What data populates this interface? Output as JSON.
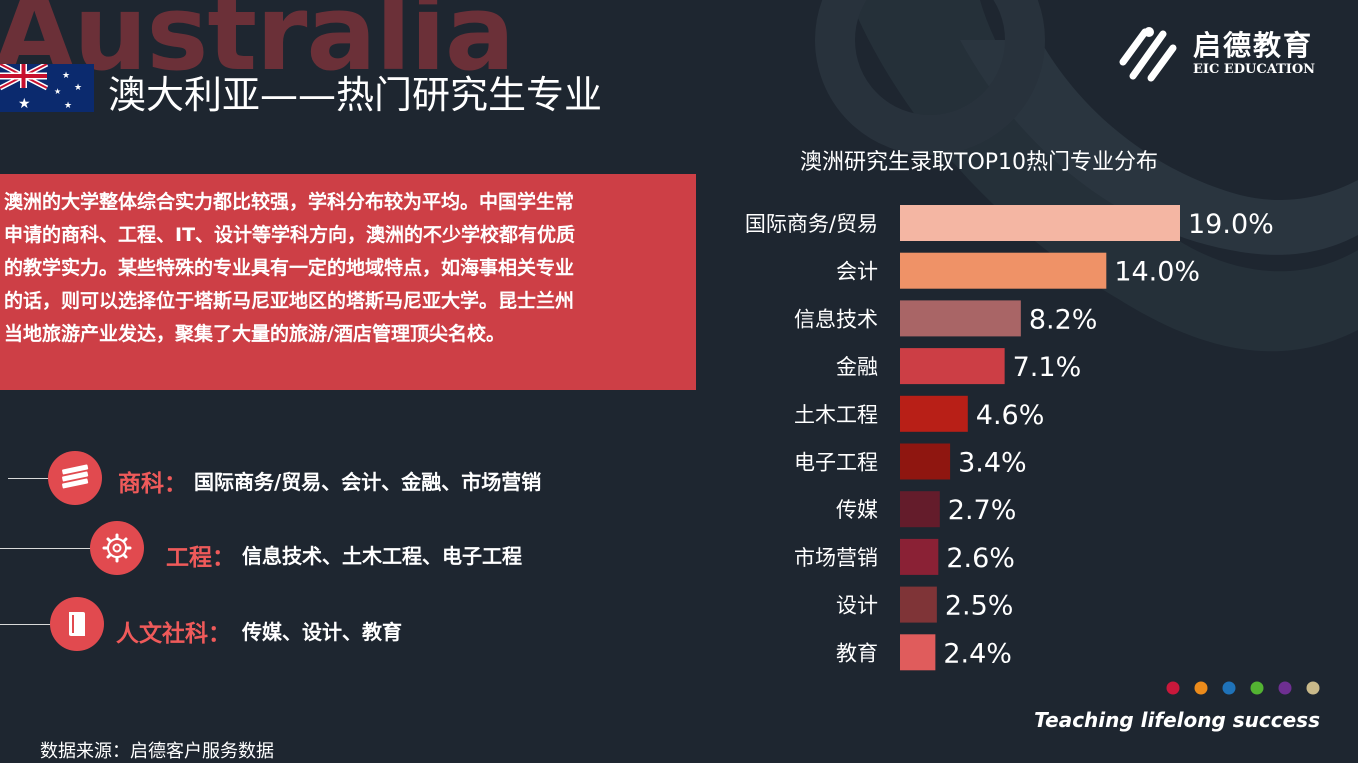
{
  "watermark": "Australia",
  "header": {
    "title": "澳大利亚——热门研究生专业"
  },
  "logo": {
    "cn": "启德教育",
    "en": "EIC EDUCATION"
  },
  "intro": {
    "lines": [
      "澳洲的大学整体综合实力都比较强，学科分布较为平均。中国学生常",
      "申请的商科、工程、IT、设计等学科方向，澳洲的不少学校都有优质",
      "的教学实力。某些特殊的专业具有一定的地域特点，如海事相关专业",
      "的话，则可以选择位于塔斯马尼亚地区的塔斯马尼亚大学。昆士兰州",
      "当地旅游产业发达，聚集了大量的旅游/酒店管理顶尖名校。"
    ]
  },
  "categories": [
    {
      "label": "商科：",
      "items": "国际商务/贸易、会计、金融、市场营销",
      "icon": "money-icon"
    },
    {
      "label": "工程：",
      "items": "信息技术、土木工程、电子工程",
      "icon": "gear-icon"
    },
    {
      "label": "人文社科：",
      "items": "传媒、设计、教育",
      "icon": "book-icon"
    }
  ],
  "chart_data": {
    "type": "bar",
    "orientation": "horizontal",
    "title": "澳洲研究生录取TOP10热门专业分布",
    "categories": [
      "国际商务/贸易",
      "会计",
      "信息技术",
      "金融",
      "土木工程",
      "电子工程",
      "传媒",
      "市场营销",
      "设计",
      "教育"
    ],
    "values": [
      19.0,
      14.0,
      8.2,
      7.1,
      4.6,
      3.4,
      2.7,
      2.6,
      2.5,
      2.4
    ],
    "value_labels": [
      "19.0%",
      "14.0%",
      "8.2%",
      "7.1%",
      "4.6%",
      "3.4%",
      "2.7%",
      "2.6%",
      "2.5%",
      "2.4%"
    ],
    "colors": [
      "#f4b6a3",
      "#ef9267",
      "#a96566",
      "#cc3e45",
      "#b81f17",
      "#8f1610",
      "#641c2b",
      "#8a2135",
      "#7f3437",
      "#e05c5c"
    ],
    "xlim": [
      0,
      19.0
    ],
    "grid": false,
    "legend": "none"
  },
  "palette_dots": [
    "#c9183b",
    "#ec8b1b",
    "#1f72b8",
    "#53b332",
    "#6e2f91",
    "#c9b98a"
  ],
  "footer": {
    "slogan": "Teaching lifelong success",
    "source": "数据来源：启德客户服务数据"
  }
}
